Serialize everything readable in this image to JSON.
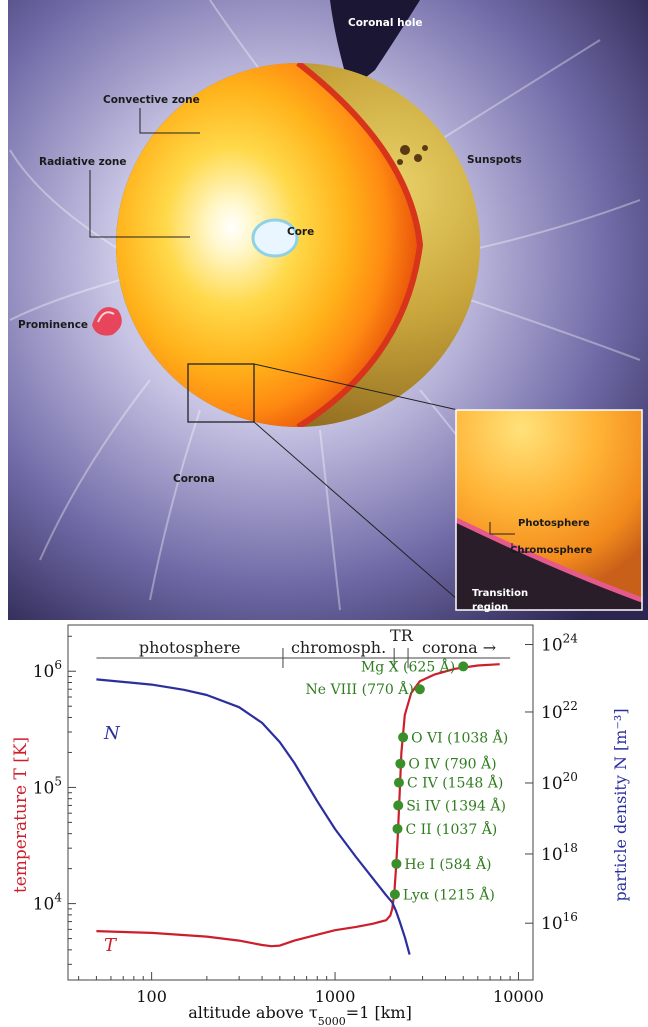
{
  "illustration": {
    "labels": {
      "coronal_hole": "Coronal hole",
      "convective_zone": "Convective zone",
      "sunspots": "Sunspots",
      "radiative_zone": "Radiative zone",
      "core": "Core",
      "prominence": "Prominence",
      "corona": "Corona",
      "photosphere": "Photosphere",
      "chromosphere": "Chromosphere",
      "transition_region_line1": "Transition",
      "transition_region_line2": "region"
    }
  },
  "chart_data": {
    "type": "line",
    "xlabel_prefix": "altitude above τ",
    "xlabel_sub": "5000",
    "xlabel_suffix": "=1  [km]",
    "ylabel_left": "temperature  T [K]",
    "ylabel_right": "particle density  N [m⁻³]",
    "x_scale": "log",
    "xlim": [
      35,
      12000
    ],
    "xticks": [
      {
        "v": 100,
        "label": "100"
      },
      {
        "v": 1000,
        "label": "1000"
      },
      {
        "v": 10000,
        "label": "10000"
      }
    ],
    "yleft_scale": "log",
    "yleft_lim": [
      2200,
      2500000
    ],
    "yleft_ticks": [
      {
        "v": 10000,
        "base": "10",
        "exp": "4"
      },
      {
        "v": 100000,
        "base": "10",
        "exp": "5"
      },
      {
        "v": 1000000,
        "base": "10",
        "exp": "6"
      }
    ],
    "yright_scale": "log",
    "yright_ticks": [
      {
        "exp": "16",
        "frac": 0.16
      },
      {
        "exp": "18",
        "frac": 0.355
      },
      {
        "exp": "20",
        "frac": 0.555
      },
      {
        "exp": "22",
        "frac": 0.755
      },
      {
        "exp": "24",
        "frac": 0.945
      }
    ],
    "regions": [
      {
        "label": "photosphere",
        "from": 50,
        "to": 520
      },
      {
        "label": "chromosph.",
        "from": 520,
        "to": 2100
      },
      {
        "label": "TR",
        "from": 2100,
        "to": 2500
      },
      {
        "label": "corona  →",
        "from": 2500,
        "to": 9000
      }
    ],
    "series": [
      {
        "name": "T",
        "color": "#cc1f2b",
        "axis": "left",
        "x": [
          50,
          100,
          200,
          300,
          400,
          450,
          500,
          600,
          800,
          1000,
          1300,
          1600,
          1900,
          2000,
          2050,
          2100,
          2150,
          2200,
          2250,
          2300,
          2400,
          2600,
          2900,
          3500,
          4500,
          6000,
          7900
        ],
        "y": [
          5800,
          5600,
          5200,
          4800,
          4400,
          4300,
          4350,
          4800,
          5400,
          5900,
          6300,
          6700,
          7200,
          7900,
          9000,
          12000,
          20000,
          40000,
          90000,
          200000,
          420000,
          650000,
          820000,
          940000,
          1050000,
          1120000,
          1150000
        ]
      },
      {
        "name": "N",
        "color": "#2b2f9e",
        "axis": "right",
        "x": [
          50,
          100,
          150,
          200,
          300,
          400,
          500,
          600,
          800,
          1000,
          1300,
          1600,
          1900,
          2050,
          2150,
          2250,
          2400,
          2550
        ],
        "y": [
          23.0,
          22.85,
          22.7,
          22.55,
          22.2,
          21.75,
          21.2,
          20.6,
          19.5,
          18.7,
          17.9,
          17.3,
          16.8,
          16.6,
          16.35,
          16.05,
          15.6,
          15.1
        ]
      }
    ],
    "ions": [
      {
        "label": "Mg X (625 Å)",
        "x": 5000,
        "y": 1100000
      },
      {
        "label": "Ne VIII (770 Å)",
        "x": 2900,
        "y": 700000
      },
      {
        "label": "O VI (1038 Å)",
        "x": 2350,
        "y": 270000
      },
      {
        "label": "O IV (790 Å)",
        "x": 2270,
        "y": 160000
      },
      {
        "label": "C IV (1548 Å)",
        "x": 2230,
        "y": 110000
      },
      {
        "label": "Si IV (1394 Å)",
        "x": 2210,
        "y": 70000
      },
      {
        "label": "C II  (1037 Å)",
        "x": 2190,
        "y": 44000
      },
      {
        "label": "He I (584 Å)",
        "x": 2160,
        "y": 22000
      },
      {
        "label": "Lyα (1215 Å)",
        "x": 2120,
        "y": 12000
      }
    ],
    "ion_color": "#2f7d1e",
    "marker_color": "#3b8f2a"
  }
}
